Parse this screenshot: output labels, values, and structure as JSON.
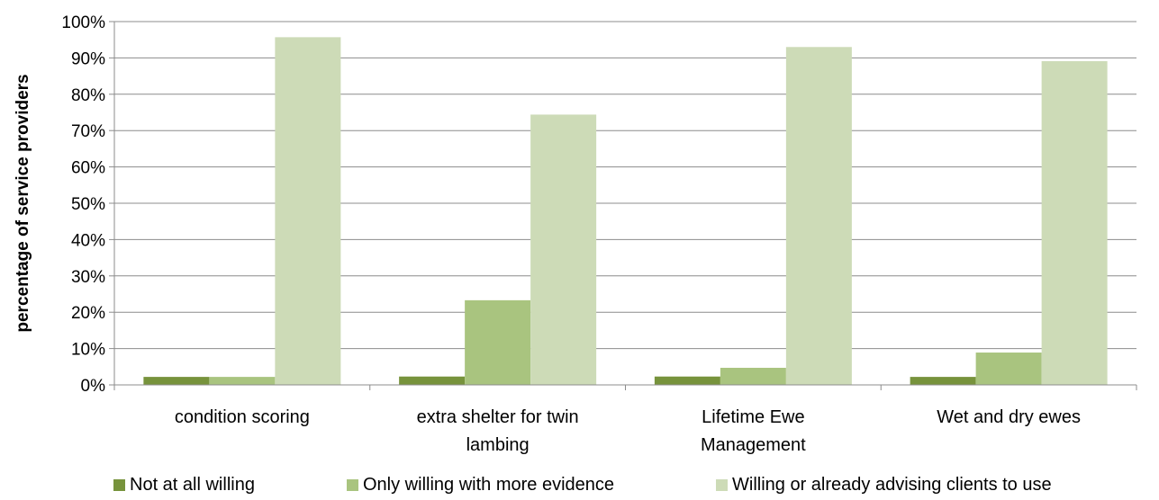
{
  "chart_data": {
    "type": "bar",
    "title": "",
    "xlabel": "",
    "ylabel": "percentage of service providers",
    "ylim": [
      0,
      100
    ],
    "yticks": [
      "0%",
      "10%",
      "20%",
      "30%",
      "40%",
      "50%",
      "60%",
      "70%",
      "80%",
      "90%",
      "100%"
    ],
    "grid": true,
    "legend_position": "bottom",
    "categories": [
      [
        "condition scoring"
      ],
      [
        "extra shelter for twin",
        "lambing"
      ],
      [
        "Lifetime Ewe",
        "Management"
      ],
      [
        "Wet and dry ewes"
      ]
    ],
    "series": [
      {
        "name": "Not at all willing",
        "color": "#77933C",
        "values": [
          2.2,
          2.3,
          2.3,
          2.2
        ]
      },
      {
        "name": "Only willing with more evidence",
        "color": "#A9C47F",
        "values": [
          2.2,
          23.3,
          4.7,
          8.9
        ]
      },
      {
        "name": "Willing or already advising clients to use",
        "color": "#CDDBB7",
        "values": [
          95.7,
          74.4,
          93.0,
          89.1
        ]
      }
    ]
  }
}
